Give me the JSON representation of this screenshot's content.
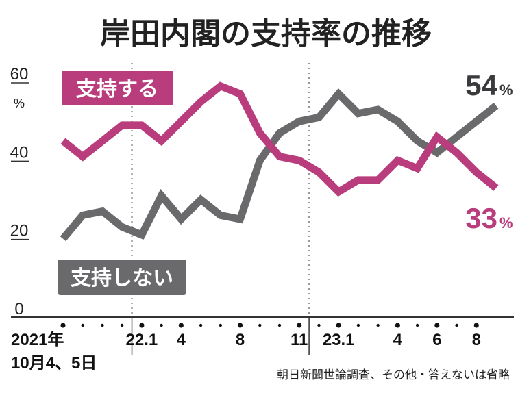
{
  "colors": {
    "support": "#b93d7d",
    "nonsupport": "#6a6a6d",
    "axis": "#333333",
    "divider": "#999999"
  },
  "chart_data": {
    "type": "line",
    "title": "岸田内閣の支持率の推移",
    "ylabel_unit": "%",
    "ylim": [
      0,
      60
    ],
    "yticks": [
      "0",
      "20",
      "40",
      "60"
    ],
    "series": [
      {
        "name": "支持する",
        "values": [
          45,
          41,
          45,
          49,
          49,
          45,
          50,
          55,
          59,
          57,
          47,
          41,
          40,
          37,
          32,
          35,
          35,
          40,
          38,
          46,
          42,
          37,
          33
        ]
      },
      {
        "name": "支持しない",
        "values": [
          20,
          26,
          27,
          23,
          21,
          31,
          25,
          30,
          26,
          25,
          40,
          47,
          50,
          51,
          57,
          52,
          53,
          50,
          45,
          42,
          46,
          50,
          54
        ]
      }
    ],
    "x_labels": [
      {
        "i": 0,
        "lines": [
          "2021年",
          "10月4、5日"
        ]
      },
      {
        "i": 4,
        "lines": [
          "22.1"
        ]
      },
      {
        "i": 6,
        "lines": [
          "4"
        ]
      },
      {
        "i": 9,
        "lines": [
          "8"
        ]
      },
      {
        "i": 12,
        "lines": [
          "11"
        ]
      },
      {
        "i": 14,
        "lines": [
          "23.1"
        ]
      },
      {
        "i": 17,
        "lines": [
          "4"
        ]
      },
      {
        "i": 19,
        "lines": [
          "6"
        ]
      },
      {
        "i": 21,
        "lines": [
          "8"
        ]
      }
    ],
    "dots": [
      0,
      1,
      2,
      3,
      4,
      5,
      6,
      7,
      8,
      9,
      10,
      11,
      12,
      13,
      14,
      15,
      16,
      17,
      18,
      19,
      20,
      21
    ],
    "dividers_after": [
      3,
      12
    ],
    "end_labels": {
      "support": "33",
      "nonsupport": "54",
      "pct": "%"
    },
    "legend": {
      "support": "支持する",
      "nonsupport": "支持しない"
    }
  },
  "note": "朝日新聞世論調査、その他・答えないは省略"
}
